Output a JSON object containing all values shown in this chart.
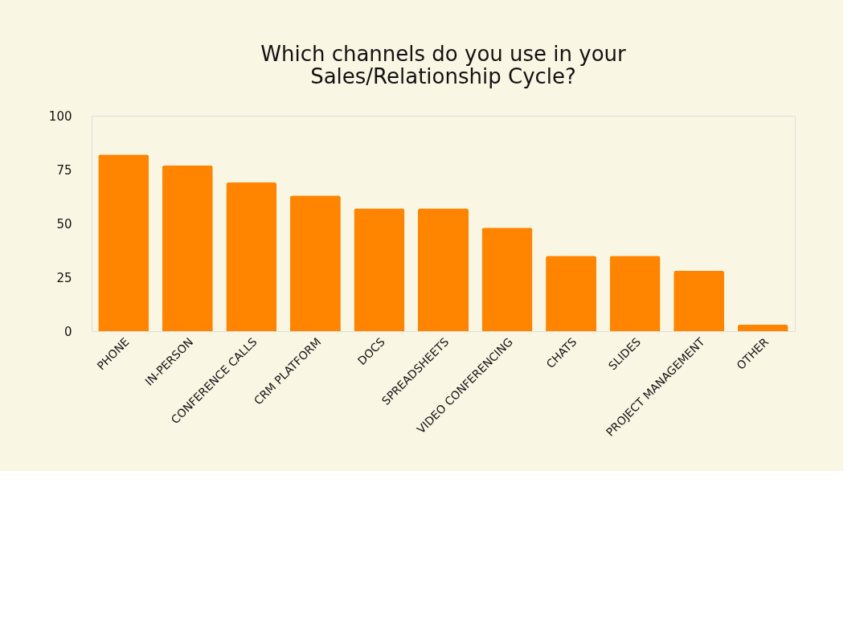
{
  "chart_data": {
    "type": "bar",
    "title": "Which channels do you use in your\nSales/Relationship Cycle?",
    "categories": [
      "PHONE",
      "IN-PERSON",
      "CONFERENCE CALLS",
      "CRM PLATFORM",
      "DOCS",
      "SPREADSHEETS",
      "VIDEO CONFERENCING",
      "CHATS",
      "SLIDES",
      "PROJECT MANAGEMENT",
      "OTHER"
    ],
    "values": [
      82,
      77,
      69,
      63,
      57,
      57,
      48,
      35,
      35,
      28,
      3
    ],
    "color": "#ff8400",
    "ylim": [
      0,
      100
    ],
    "yticks": [
      0,
      25,
      50,
      75,
      100
    ],
    "grid": false
  }
}
